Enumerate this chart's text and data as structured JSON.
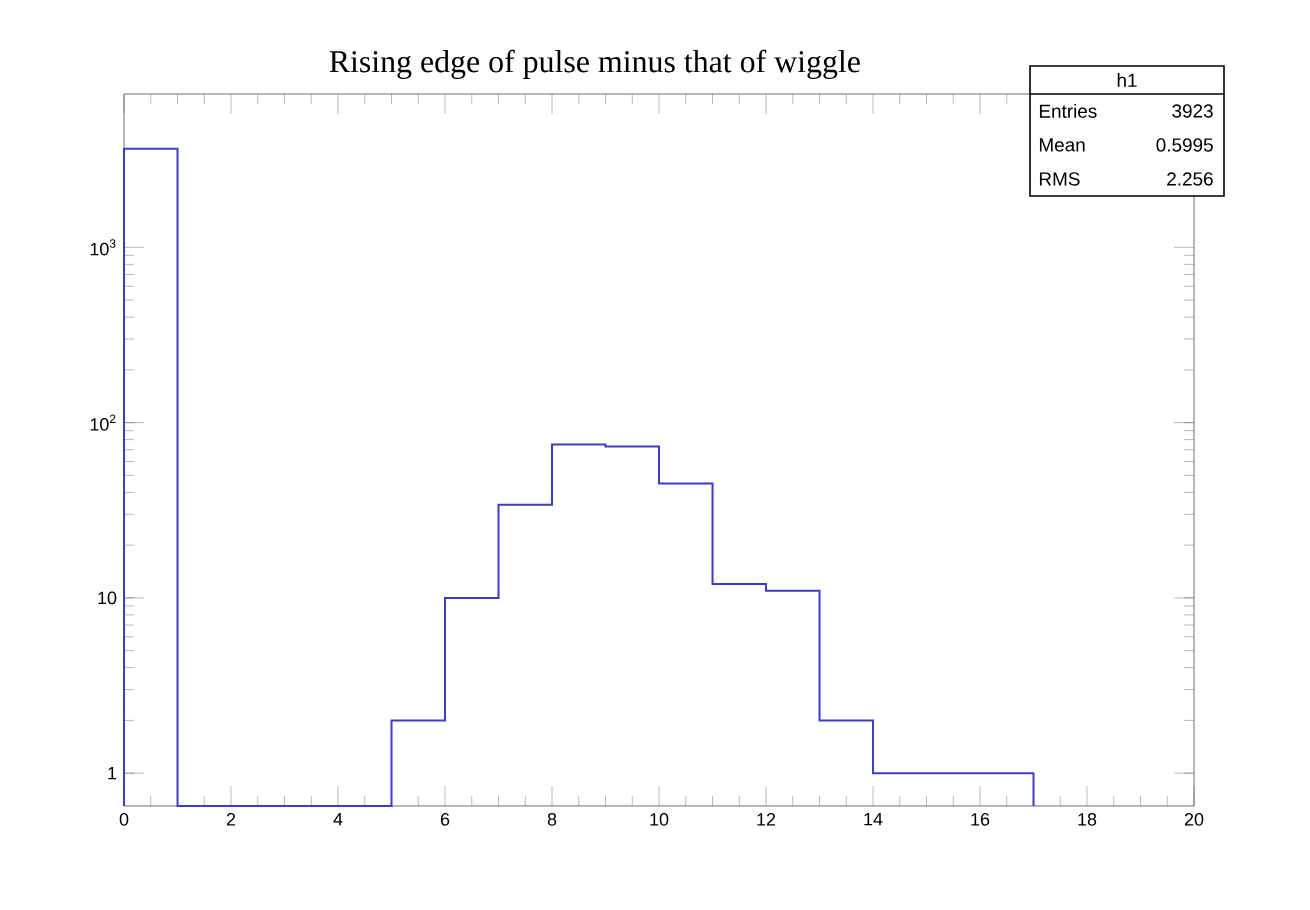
{
  "chart_data": {
    "type": "histogram",
    "title": "Rising edge of pulse minus that of wiggle",
    "bins": [
      0,
      1,
      2,
      3,
      4,
      5,
      6,
      7,
      8,
      9,
      10,
      11,
      12,
      13,
      14,
      15,
      16,
      17
    ],
    "values": [
      3656,
      null,
      null,
      null,
      null,
      2,
      10,
      34,
      75,
      73,
      45,
      12,
      11,
      2,
      1,
      1,
      1
    ],
    "color": "#3c3cc8",
    "log": "y",
    "xlim": [
      0,
      20
    ],
    "xticks": [
      0,
      2,
      4,
      6,
      8,
      10,
      12,
      14,
      16,
      18,
      20
    ],
    "ylim": [
      0.65,
      7500
    ],
    "yticks": [
      1,
      10,
      {
        "value": 100,
        "label": "10$^{2}$"
      },
      {
        "value": 1000,
        "label": "10$^{3}$"
      }
    ],
    "annotations": [
      "h1",
      "Entries",
      "3923",
      "Mean",
      "0.5995",
      "RMS",
      "2.256"
    ]
  }
}
